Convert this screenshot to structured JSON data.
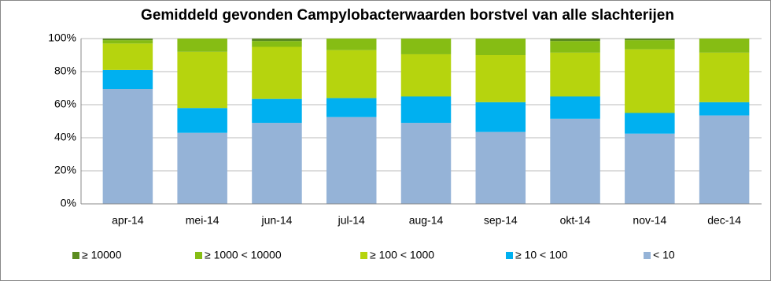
{
  "chart_data": {
    "type": "stacked-bar",
    "title": "Gemiddeld gevonden Campylobacterwaarden borstvel  van alle slachterijen",
    "categories": [
      "apr-14",
      "mei-14",
      "jun-14",
      "jul-14",
      "aug-14",
      "sep-14",
      "okt-14",
      "nov-14",
      "dec-14"
    ],
    "series": [
      {
        "name": "≥ 10000",
        "color": "#5b8c1f",
        "values": [
          1,
          0,
          1.5,
          0,
          0,
          0,
          1.5,
          1,
          0
        ]
      },
      {
        "name": "≥ 1000 < 10000",
        "color": "#86bd14",
        "values": [
          2,
          8,
          3.5,
          7,
          9.5,
          10,
          7,
          5.5,
          8.5
        ]
      },
      {
        "name": "≥ 100 < 1000",
        "color": "#b6d40e",
        "values": [
          16,
          34,
          31.5,
          29,
          25.5,
          28.5,
          26.5,
          38.5,
          30
        ]
      },
      {
        "name": "≥ 10 < 100",
        "color": "#00b0f0",
        "values": [
          11.5,
          15,
          14.5,
          11.5,
          16,
          18,
          13.5,
          12.5,
          8
        ]
      },
      {
        "name": "< 10",
        "color": "#95b3d7",
        "values": [
          69.5,
          43,
          49,
          52.5,
          49,
          43.5,
          51.5,
          42.5,
          53.5
        ]
      }
    ],
    "ylim": [
      0,
      100
    ],
    "yticks": [
      {
        "value": 0,
        "label": "0%"
      },
      {
        "value": 20,
        "label": "20%"
      },
      {
        "value": 40,
        "label": "40%"
      },
      {
        "value": 60,
        "label": "60%"
      },
      {
        "value": 80,
        "label": "80%"
      },
      {
        "value": 100,
        "label": "100%"
      }
    ],
    "grid": true,
    "legend": "bottom"
  }
}
